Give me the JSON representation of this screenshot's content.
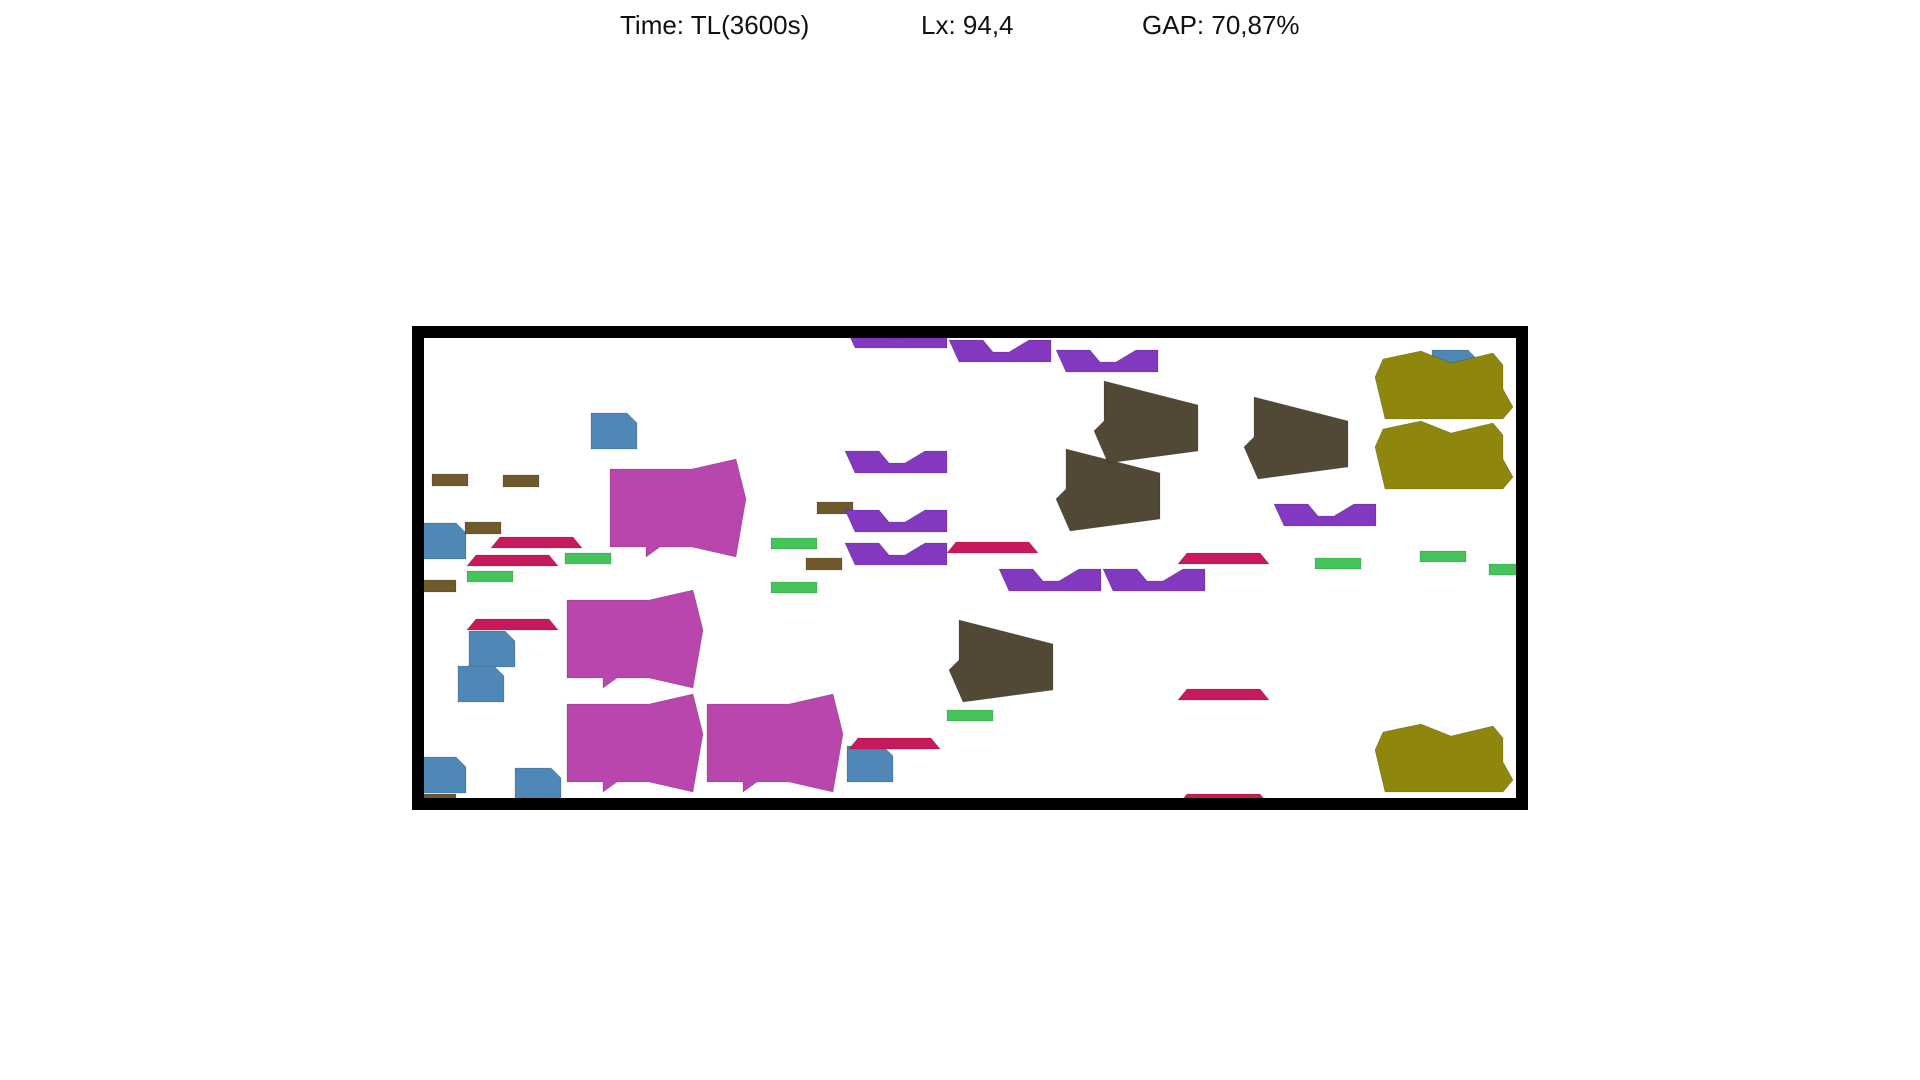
{
  "header": {
    "time_text": "Time: TL(3600s)",
    "lx_text": "Lx: 94,4",
    "gap_text": "GAP: 70,87%"
  },
  "palette": {
    "frame": "#000000",
    "background": "#ffffff",
    "steel_blue": "#4f87b6",
    "brown": "#6f5a2e",
    "crimson": "#c8195d",
    "green": "#46c45c",
    "magenta": "#b946ad",
    "purple": "#8238bf",
    "dark_olive": "#514935",
    "olive": "#8f860e"
  },
  "pieces": [
    {
      "shape": "blue_tile",
      "color": "steel_blue"
    },
    {
      "shape": "blue_tile",
      "color": "steel_blue"
    },
    {
      "shape": "blue_tile",
      "color": "steel_blue"
    },
    {
      "shape": "blue_tile",
      "color": "steel_blue"
    },
    {
      "shape": "blue_tile",
      "color": "steel_blue"
    },
    {
      "shape": "blue_tile",
      "color": "steel_blue"
    },
    {
      "shape": "blue_tile",
      "color": "steel_blue"
    },
    {
      "shape": "blue_tile",
      "color": "steel_blue"
    },
    {
      "shape": "brown_bar",
      "color": "brown"
    },
    {
      "shape": "brown_bar",
      "color": "brown"
    },
    {
      "shape": "brown_bar",
      "color": "brown"
    },
    {
      "shape": "brown_bar",
      "color": "brown"
    },
    {
      "shape": "brown_bar",
      "color": "brown"
    },
    {
      "shape": "brown_bar",
      "color": "brown"
    },
    {
      "shape": "brown_bar",
      "color": "brown"
    },
    {
      "shape": "crimson_trapezoid",
      "color": "crimson"
    },
    {
      "shape": "crimson_trapezoid",
      "color": "crimson"
    },
    {
      "shape": "crimson_trapezoid",
      "color": "crimson"
    },
    {
      "shape": "crimson_trapezoid",
      "color": "crimson"
    },
    {
      "shape": "crimson_trapezoid",
      "color": "crimson"
    },
    {
      "shape": "crimson_trapezoid",
      "color": "crimson"
    },
    {
      "shape": "crimson_trapezoid",
      "color": "crimson"
    },
    {
      "shape": "crimson_trapezoid",
      "color": "crimson"
    },
    {
      "shape": "green_bar",
      "color": "green"
    },
    {
      "shape": "green_bar",
      "color": "green"
    },
    {
      "shape": "green_bar",
      "color": "green"
    },
    {
      "shape": "green_bar",
      "color": "green"
    },
    {
      "shape": "green_bar",
      "color": "green"
    },
    {
      "shape": "green_bar",
      "color": "green"
    },
    {
      "shape": "green_bar",
      "color": "green"
    },
    {
      "shape": "green_bar",
      "color": "green"
    },
    {
      "shape": "magenta_block",
      "color": "magenta"
    },
    {
      "shape": "magenta_block",
      "color": "magenta"
    },
    {
      "shape": "magenta_block",
      "color": "magenta"
    },
    {
      "shape": "magenta_block",
      "color": "magenta"
    },
    {
      "shape": "purple_channel",
      "color": "purple"
    },
    {
      "shape": "purple_channel",
      "color": "purple"
    },
    {
      "shape": "purple_channel",
      "color": "purple"
    },
    {
      "shape": "purple_channel",
      "color": "purple"
    },
    {
      "shape": "purple_channel",
      "color": "purple"
    },
    {
      "shape": "purple_channel",
      "color": "purple"
    },
    {
      "shape": "purple_channel",
      "color": "purple"
    },
    {
      "shape": "purple_channel",
      "color": "purple"
    },
    {
      "shape": "purple_channel",
      "color": "purple"
    },
    {
      "shape": "dark_pentagon",
      "color": "dark_olive"
    },
    {
      "shape": "dark_pentagon",
      "color": "dark_olive"
    },
    {
      "shape": "dark_pentagon",
      "color": "dark_olive"
    },
    {
      "shape": "dark_pentagon",
      "color": "dark_olive"
    },
    {
      "shape": "olive_cloud",
      "color": "olive"
    },
    {
      "shape": "olive_cloud",
      "color": "olive"
    },
    {
      "shape": "olive_cloud",
      "color": "olive"
    },
    {
      "shape": "olive_cloud",
      "color": "olive"
    }
  ]
}
